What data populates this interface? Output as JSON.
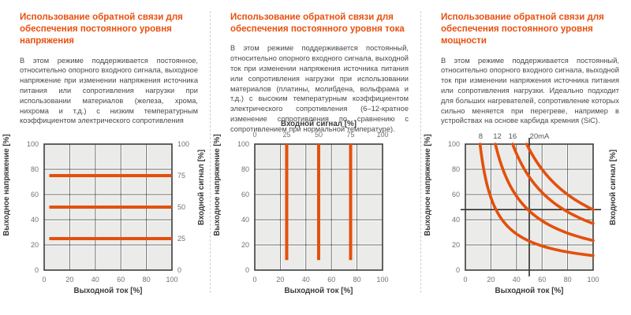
{
  "colors": {
    "accent": "#e8500f",
    "line": "#e3500c",
    "grid_bg": "#ebebe9",
    "grid_line": "#666666",
    "border": "#3d3d3d",
    "tick_text": "#717171",
    "axis_title": "#3a3a3a",
    "body_text": "#4a4a4a",
    "divider": "#cfcfcf",
    "cross": "#2e2e2e"
  },
  "panels": [
    {
      "title": "Использование обратной связи для обеспечения постоянного уровня напряжения",
      "body": "В этом режиме поддерживается постоянное, относительно опорного входного сигнала, выходное напряжение при изменении напряжения источника питания или сопротивления нагрузки при использовании материалов (железа, хрома, нихрома и т.д.) с низким температурным коэффициентом электрического сопротивления"
    },
    {
      "title": "Использование обратной связи для обеспечения постоянного уровня тока",
      "body": "В этом режиме поддерживается постоянный, относительно опорного входного сигнала, выходной ток при изменении напряжения источника питания или сопротивления нагрузки при использовании материалов (платины, молибдена, вольфрама и т.д.) с высоким температурным коэффициентом электрического сопротивления (6–12-кратное изменение сопротивления по сравнению с сопротивлением при нормальной температуре)."
    },
    {
      "title": "Использование обратной связи для обеспечения постоянного уровня мощности",
      "body": "В этом режиме поддерживается постоянный, относительно опорного входного сигнала, выходной ток при изменении напряжения источника питания или сопротивления нагрузки. Идеально подходит для больших нагревателей, сопротивление которых сильно меняется при перегреве, например в устройствах на основе карбида кремния (SiC)."
    }
  ],
  "chart_data": [
    {
      "type": "line",
      "xlabel": "Выходной ток [%]",
      "ylabel": "Выходное напряжение [%]",
      "ylabel_right": "Входной сигнал [%]",
      "xlim": [
        0,
        100
      ],
      "ylim": [
        0,
        100
      ],
      "x_ticks": [
        0,
        20,
        40,
        60,
        80,
        100
      ],
      "y_ticks": [
        0,
        20,
        40,
        60,
        80,
        100
      ],
      "y_ticks_right": [
        0,
        25,
        50,
        75,
        100
      ],
      "grid": true,
      "series": [
        {
          "name": "Входной сигнал 75%",
          "kind": "h_segment",
          "y": 75,
          "x": [
            4,
            100
          ]
        },
        {
          "name": "Входной сигнал 50%",
          "kind": "h_segment",
          "y": 50,
          "x": [
            4,
            100
          ]
        },
        {
          "name": "Входной сигнал 25%",
          "kind": "h_segment",
          "y": 25,
          "x": [
            4,
            100
          ]
        }
      ]
    },
    {
      "type": "line",
      "xlabel": "Выходной ток [%]",
      "ylabel": "Выходное напряжение [%]",
      "top_axis": {
        "label": "Входной сигнал [%]",
        "ticks": [
          0,
          25,
          50,
          75,
          100
        ]
      },
      "xlim": [
        0,
        100
      ],
      "ylim": [
        0,
        100
      ],
      "x_ticks": [
        0,
        20,
        40,
        60,
        80,
        100
      ],
      "y_ticks": [
        0,
        20,
        40,
        60,
        80,
        100
      ],
      "grid": true,
      "series": [
        {
          "name": "Входной сигнал 25%",
          "kind": "v_segment",
          "x": 25,
          "y": [
            8,
            100
          ]
        },
        {
          "name": "Входной сигнал 50%",
          "kind": "v_segment",
          "x": 50,
          "y": [
            8,
            100
          ]
        },
        {
          "name": "Входной сигнал 75%",
          "kind": "v_segment",
          "x": 75,
          "y": [
            8,
            100
          ]
        }
      ]
    },
    {
      "type": "line",
      "xlabel": "Выходной ток [%]",
      "ylabel": "Выходное напряжение [%]",
      "ylabel_right": "Входной сигнал [%]",
      "xlim": [
        0,
        100
      ],
      "ylim": [
        0,
        100
      ],
      "x_ticks": [
        0,
        20,
        40,
        60,
        80,
        100
      ],
      "y_ticks": [
        0,
        20,
        40,
        60,
        80,
        100
      ],
      "grid": true,
      "crosshair": {
        "x": 50,
        "y": 48
      },
      "series": [
        {
          "name": "8",
          "kind": "hyperbola",
          "xy_const": 1150,
          "label": "8",
          "label_x": 12
        },
        {
          "name": "12",
          "kind": "hyperbola",
          "xy_const": 2350,
          "label": "12",
          "label_x": 25
        },
        {
          "name": "16",
          "kind": "hyperbola",
          "xy_const": 3700,
          "label": "16",
          "label_x": 37
        },
        {
          "name": "20mA",
          "kind": "hyperbola",
          "xy_const": 4800,
          "label": "20mA",
          "label_x": 58
        }
      ]
    }
  ]
}
